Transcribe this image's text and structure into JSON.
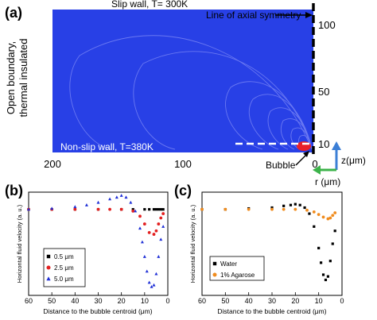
{
  "panel_a": {
    "label": "(a)",
    "top_label": "Slip wall, T= 300K",
    "axis_label": "Line of axial symmetry",
    "left_label_line1": "Open boundary,",
    "left_label_line2": "thermal insulated",
    "bottom_label": "Non-slip wall, T=380K",
    "bubble_label": "Bubble",
    "x_ticks": [
      "200",
      "100",
      "0"
    ],
    "z_ticks": [
      "100",
      "50",
      "10"
    ],
    "z_axis_label": "z(μm)",
    "r_axis_label": "r (μm)",
    "colors": {
      "field": "#2840e6",
      "streamline": "#6a78f2",
      "bubble": "#e8202a"
    }
  },
  "chart_data": [
    {
      "type": "scatter",
      "label": "(b)",
      "xlabel": "Distance to the bubble centroid (μm)",
      "ylabel": "Horizontal fluid velocity (a. u.)",
      "xlim": [
        60,
        0
      ],
      "ylim": [
        -1.0,
        0.2
      ],
      "x_ticks": [
        "60",
        "50",
        "40",
        "30",
        "20",
        "10",
        "0"
      ],
      "series": [
        {
          "name": "0.5 μm",
          "color": "#000000",
          "marker": "square",
          "x": [
            60,
            50,
            40,
            30,
            20,
            15,
            10,
            8,
            6,
            5,
            4,
            3,
            2
          ],
          "y": [
            0.0,
            0.0,
            0.0,
            0.0,
            0.0,
            0.0,
            0.0,
            0.0,
            0.0,
            0.0,
            0.0,
            0.0,
            0.0
          ]
        },
        {
          "name": "2.5 μm",
          "color": "#e32020",
          "marker": "circle",
          "x": [
            60,
            50,
            40,
            30,
            25,
            20,
            15,
            12,
            10,
            8,
            6,
            5,
            4,
            3,
            2
          ],
          "y": [
            0.0,
            0.0,
            0.0,
            0.0,
            0.0,
            0.0,
            -0.02,
            -0.08,
            -0.17,
            -0.27,
            -0.29,
            -0.25,
            -0.17,
            -0.1,
            -0.05
          ]
        },
        {
          "name": "5.0 μm",
          "color": "#1f2fd6",
          "marker": "triangle",
          "x": [
            60,
            50,
            40,
            35,
            30,
            25,
            22,
            20,
            18,
            16,
            14,
            12,
            11,
            10,
            9,
            8,
            7,
            6,
            5,
            4,
            3,
            2
          ],
          "y": [
            0.0,
            0.01,
            0.03,
            0.05,
            0.08,
            0.12,
            0.14,
            0.16,
            0.14,
            0.08,
            -0.02,
            -0.22,
            -0.38,
            -0.55,
            -0.72,
            -0.85,
            -0.9,
            -0.88,
            -0.75,
            -0.55,
            -0.35,
            -0.2
          ]
        }
      ]
    },
    {
      "type": "scatter",
      "label": "(c)",
      "xlabel": "Distance to the bubble centroid (μm)",
      "ylabel": "Horizontal fluid velocity (a. u.)",
      "xlim": [
        60,
        0
      ],
      "ylim": [
        -1.0,
        0.2
      ],
      "x_ticks": [
        "60",
        "50",
        "40",
        "30",
        "20",
        "10",
        "0"
      ],
      "series": [
        {
          "name": "Water",
          "color": "#000000",
          "marker": "square",
          "x": [
            60,
            50,
            40,
            30,
            25,
            22,
            20,
            18,
            16,
            14,
            12,
            10,
            9,
            8,
            7,
            6,
            5,
            4,
            3
          ],
          "y": [
            0.0,
            0.0,
            0.01,
            0.02,
            0.04,
            0.05,
            0.06,
            0.05,
            0.02,
            -0.05,
            -0.2,
            -0.45,
            -0.62,
            -0.76,
            -0.82,
            -0.78,
            -0.6,
            -0.4,
            -0.25
          ]
        },
        {
          "name": "1% Agarose",
          "color": "#f08c1e",
          "marker": "circle",
          "x": [
            60,
            50,
            40,
            30,
            25,
            20,
            15,
            12,
            10,
            8,
            6,
            5,
            4,
            3
          ],
          "y": [
            0.0,
            0.0,
            0.0,
            0.0,
            0.0,
            0.0,
            -0.01,
            -0.03,
            -0.06,
            -0.09,
            -0.11,
            -0.1,
            -0.07,
            -0.04
          ]
        }
      ]
    }
  ]
}
